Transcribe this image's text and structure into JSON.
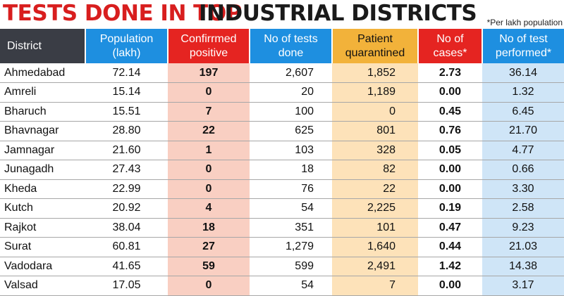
{
  "title": {
    "part1": "TESTS DONE IN TOP",
    "part2": "INDUSTRIAL DISTRICTS"
  },
  "footnote": "*Per lakh population",
  "columns": [
    "District",
    "Population (lakh)",
    "Confirrmed positive",
    "No of tests done",
    "Patient quarantined",
    "No of cases*",
    "No of test performed*"
  ],
  "rows": [
    {
      "district": "Ahmedabad",
      "population": "72.14",
      "confirmed": "197",
      "tests": "2,607",
      "quarantined": "1,852",
      "cases": "2.73",
      "performed": "36.14"
    },
    {
      "district": "Amreli",
      "population": "15.14",
      "confirmed": "0",
      "tests": "20",
      "quarantined": "1,189",
      "cases": "0.00",
      "performed": "1.32"
    },
    {
      "district": "Bharuch",
      "population": "15.51",
      "confirmed": "7",
      "tests": "100",
      "quarantined": "0",
      "cases": "0.45",
      "performed": "6.45"
    },
    {
      "district": "Bhavnagar",
      "population": "28.80",
      "confirmed": "22",
      "tests": "625",
      "quarantined": "801",
      "cases": "0.76",
      "performed": "21.70"
    },
    {
      "district": "Jamnagar",
      "population": "21.60",
      "confirmed": "1",
      "tests": "103",
      "quarantined": "328",
      "cases": "0.05",
      "performed": "4.77"
    },
    {
      "district": "Junagadh",
      "population": "27.43",
      "confirmed": "0",
      "tests": "18",
      "quarantined": "82",
      "cases": "0.00",
      "performed": "0.66"
    },
    {
      "district": "Kheda",
      "population": "22.99",
      "confirmed": "0",
      "tests": "76",
      "quarantined": "22",
      "cases": "0.00",
      "performed": "3.30"
    },
    {
      "district": "Kutch",
      "population": "20.92",
      "confirmed": "4",
      "tests": "54",
      "quarantined": "2,225",
      "cases": "0.19",
      "performed": "2.58"
    },
    {
      "district": "Rajkot",
      "population": "38.04",
      "confirmed": "18",
      "tests": "351",
      "quarantined": "101",
      "cases": "0.47",
      "performed": "9.23"
    },
    {
      "district": "Surat",
      "population": "60.81",
      "confirmed": "27",
      "tests": "1,279",
      "quarantined": "1,640",
      "cases": "0.44",
      "performed": "21.03"
    },
    {
      "district": "Vadodara",
      "population": "41.65",
      "confirmed": "59",
      "tests": "599",
      "quarantined": "2,491",
      "cases": "1.42",
      "performed": "14.38"
    },
    {
      "district": "Valsad",
      "population": "17.05",
      "confirmed": "0",
      "tests": "54",
      "quarantined": "7",
      "cases": "0.00",
      "performed": "3.17"
    }
  ],
  "colors": {
    "title_red": "#d81e1e",
    "header_dark": "#3a3d45",
    "header_blue": "#1e8fe0",
    "header_red": "#e52421",
    "header_orange": "#f2b23a",
    "tint_pink": "#f9cfc2",
    "tint_orange": "#fde2b9",
    "tint_blue": "#cfe5f7"
  }
}
